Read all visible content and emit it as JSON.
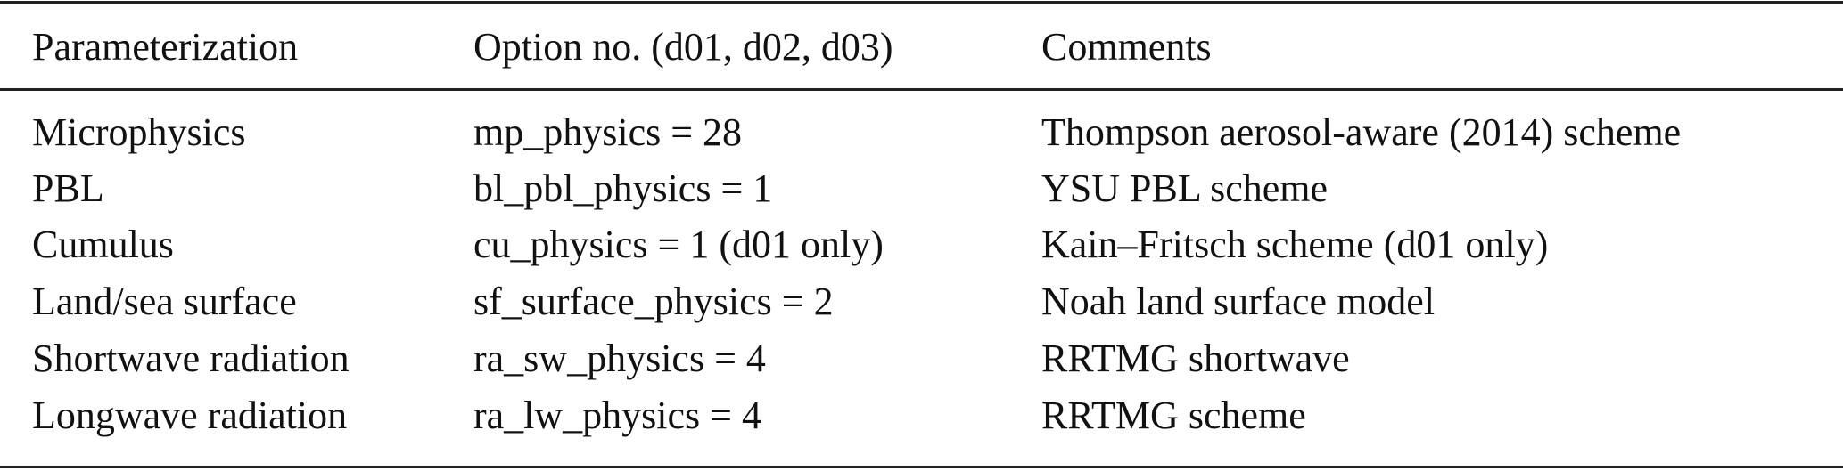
{
  "table": {
    "headers": [
      "Parameterization",
      "Option no. (d01, d02, d03)",
      "Comments"
    ],
    "rows": [
      [
        "Microphysics",
        "mp_physics = 28",
        "Thompson aerosol-aware (2014) scheme"
      ],
      [
        "PBL",
        "bl_pbl_physics = 1",
        "YSU PBL scheme"
      ],
      [
        "Cumulus",
        "cu_physics = 1 (d01 only)",
        "Kain–Fritsch scheme (d01 only)"
      ],
      [
        "Land/sea surface",
        "sf_surface_physics = 2",
        "Noah land surface model"
      ],
      [
        "Shortwave radiation",
        "ra_sw_physics = 4",
        "RRTMG shortwave"
      ],
      [
        "Longwave radiation",
        "ra_lw_physics = 4",
        "RRTMG scheme"
      ]
    ]
  }
}
